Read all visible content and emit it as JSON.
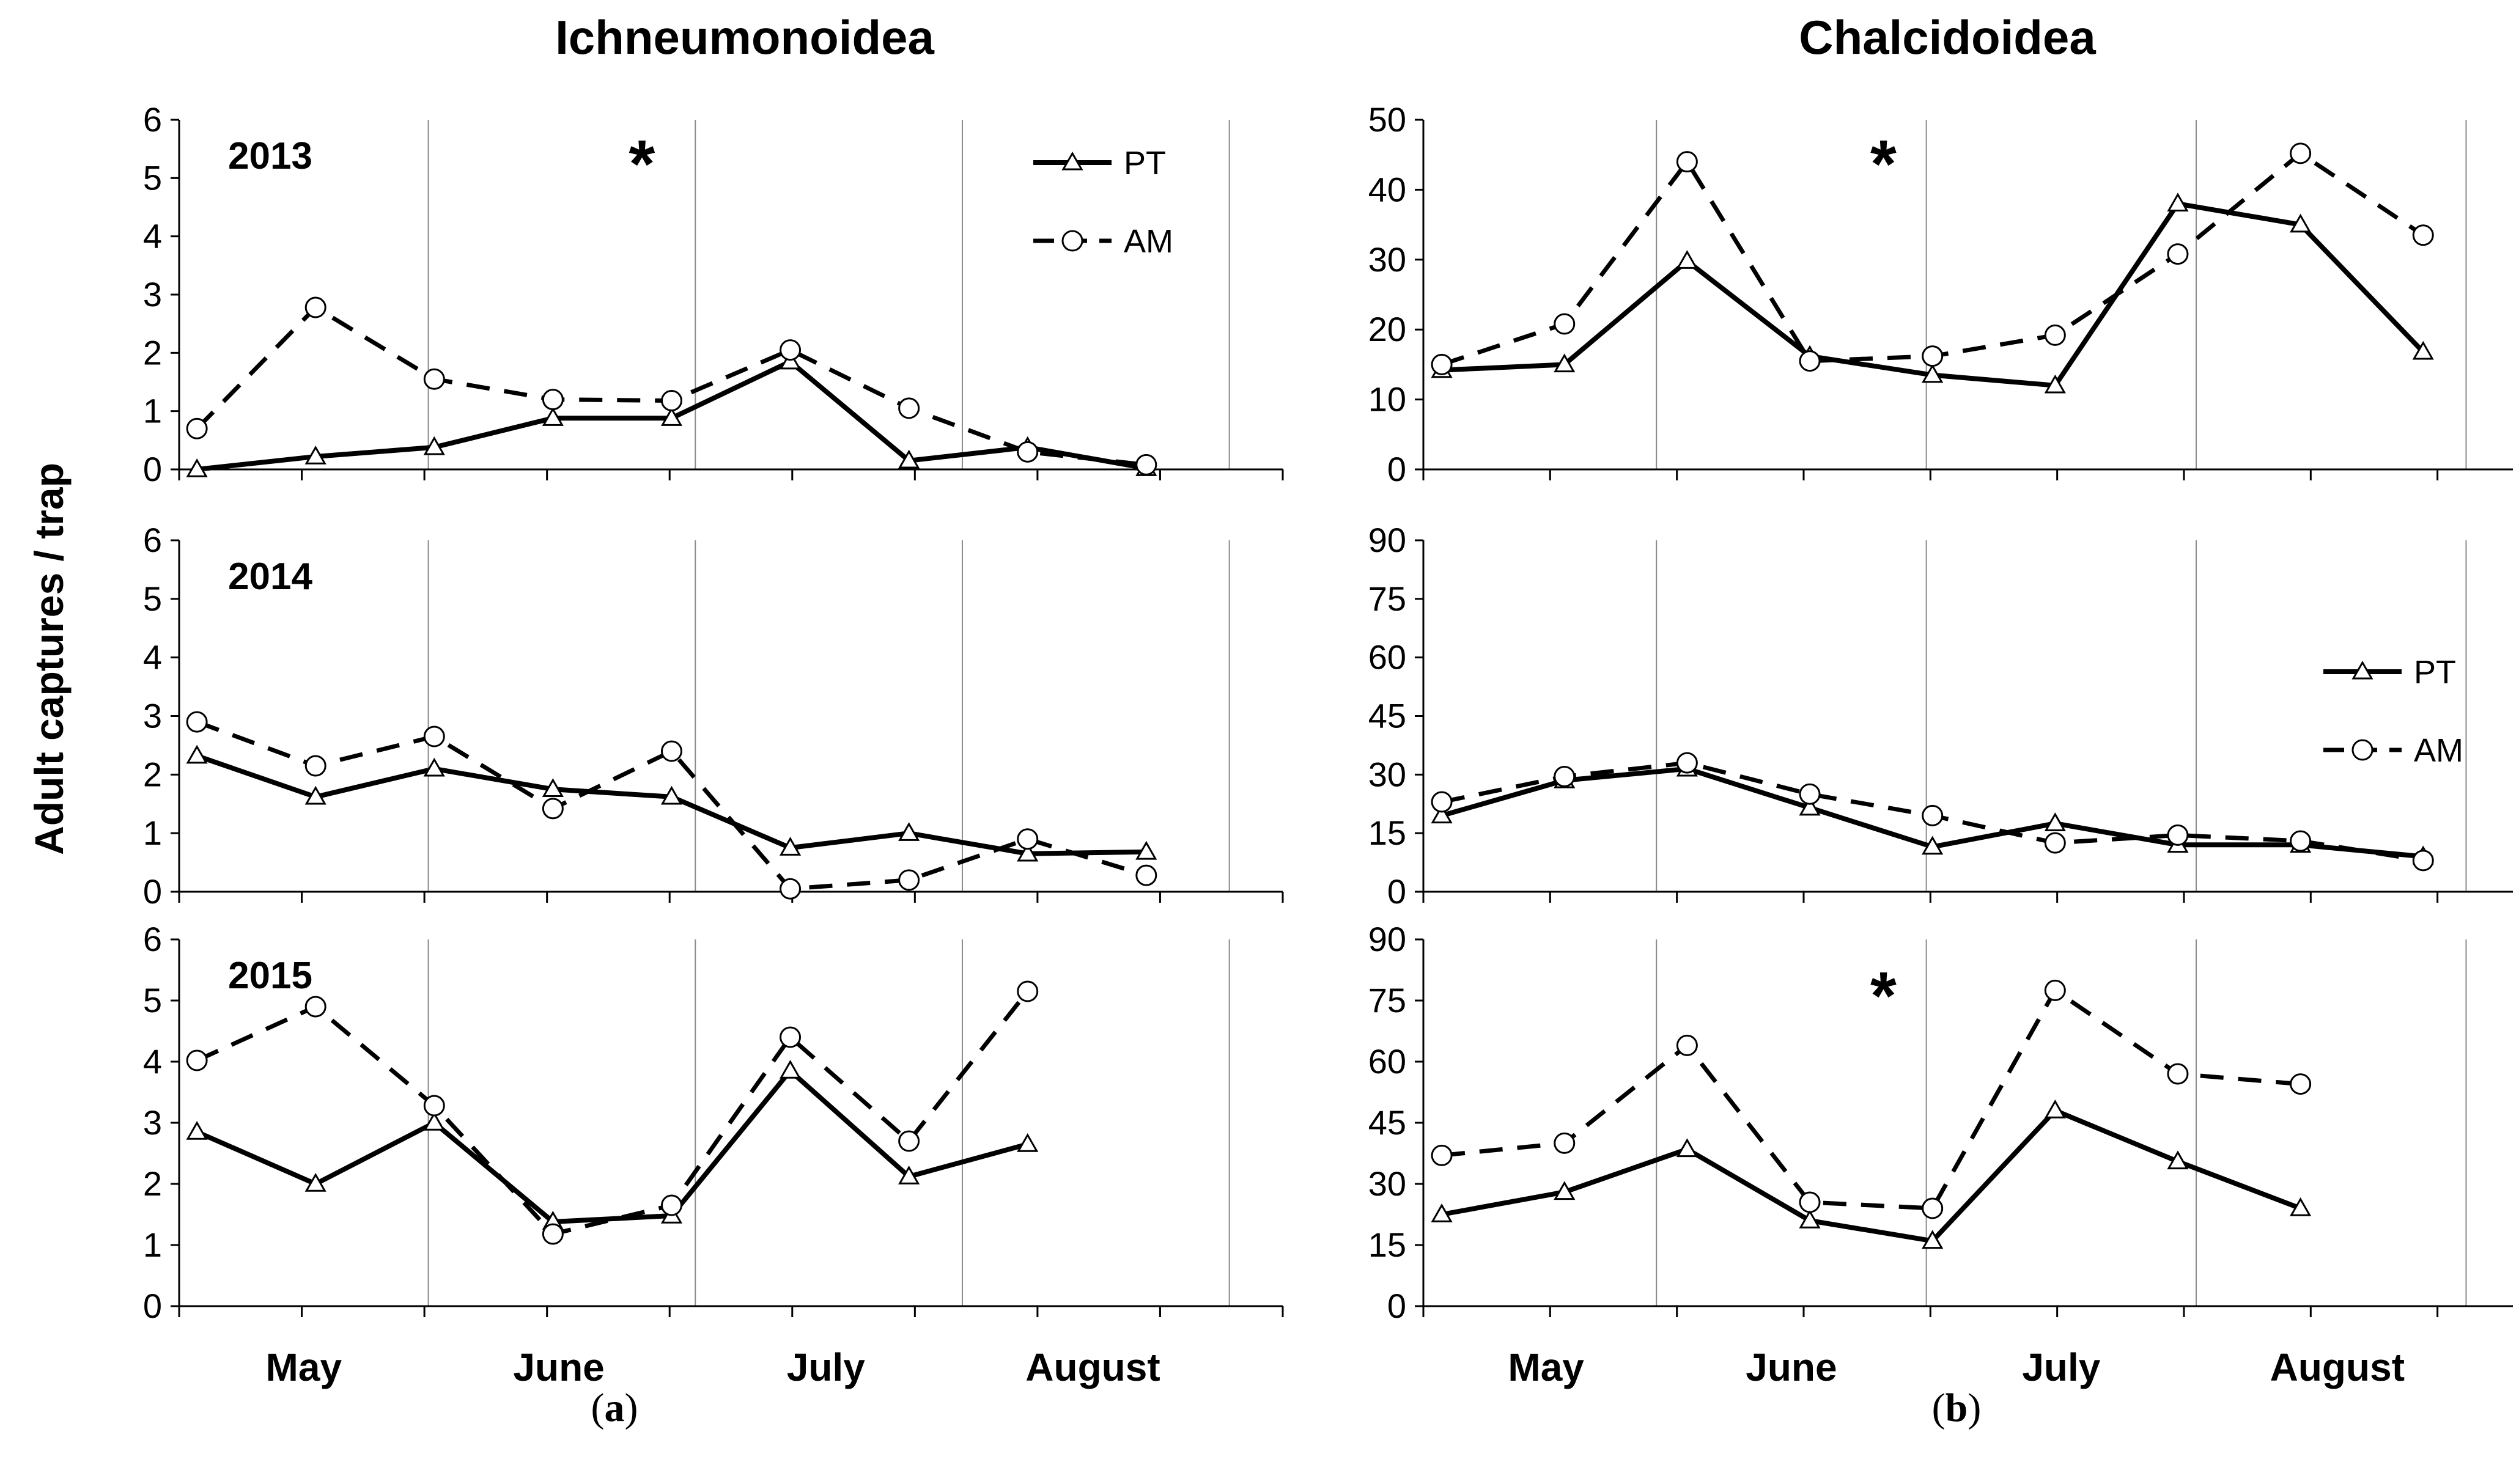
{
  "figure": {
    "ylabel": "Adult captures / trap",
    "columns": [
      {
        "title": "Ichneumonoidea",
        "sublabel": "(a)",
        "sublabel_letter": "a"
      },
      {
        "title": "Chalcidoidea",
        "sublabel": "(b)",
        "sublabel_letter": "b"
      }
    ],
    "months": [
      "May",
      "June",
      "July",
      "August"
    ],
    "legend": [
      "PT",
      "AM"
    ]
  },
  "chart_data": [
    {
      "type": "line",
      "panel": "a-2013",
      "column": 0,
      "row": 0,
      "year_label": "2013",
      "ylim": [
        0,
        6
      ],
      "yticks": [
        0,
        1,
        2,
        3,
        4,
        5,
        6
      ],
      "x": [
        1,
        2,
        3,
        4,
        5,
        6,
        7,
        8,
        9
      ],
      "legend_shown": true,
      "asterisk": true,
      "series": [
        {
          "name": "PT",
          "style": "solid-triangle",
          "values": [
            0.0,
            0.22,
            0.38,
            0.88,
            0.88,
            1.85,
            0.15,
            0.38,
            0.02
          ]
        },
        {
          "name": "AM",
          "style": "dashed-circle",
          "values": [
            0.7,
            2.78,
            1.55,
            1.2,
            1.18,
            2.05,
            1.05,
            0.3,
            0.08
          ]
        }
      ]
    },
    {
      "type": "line",
      "panel": "a-2014",
      "column": 0,
      "row": 1,
      "year_label": "2014",
      "ylim": [
        0,
        6
      ],
      "yticks": [
        0,
        1,
        2,
        3,
        4,
        5,
        6
      ],
      "x": [
        1,
        2,
        3,
        4,
        5,
        6,
        7,
        8,
        9
      ],
      "legend_shown": false,
      "asterisk": false,
      "series": [
        {
          "name": "PT",
          "style": "solid-triangle",
          "values": [
            2.32,
            1.62,
            2.1,
            1.75,
            1.62,
            0.75,
            1.0,
            0.65,
            0.68
          ]
        },
        {
          "name": "AM",
          "style": "dashed-circle",
          "values": [
            2.9,
            2.15,
            2.65,
            1.42,
            2.4,
            0.05,
            0.2,
            0.9,
            0.28
          ]
        }
      ]
    },
    {
      "type": "line",
      "panel": "a-2015",
      "column": 0,
      "row": 2,
      "year_label": "2015",
      "ylim": [
        0,
        6
      ],
      "yticks": [
        0,
        1,
        2,
        3,
        4,
        5,
        6
      ],
      "x": [
        1,
        2,
        3,
        4,
        5,
        6,
        7,
        8
      ],
      "legend_shown": false,
      "asterisk": false,
      "series": [
        {
          "name": "PT",
          "style": "solid-triangle",
          "values": [
            2.85,
            2.0,
            3.0,
            1.38,
            1.48,
            3.85,
            2.12,
            2.65
          ]
        },
        {
          "name": "AM",
          "style": "dashed-circle",
          "values": [
            4.02,
            4.9,
            3.28,
            1.18,
            1.65,
            4.4,
            2.7,
            5.15
          ]
        }
      ]
    },
    {
      "type": "line",
      "panel": "b-2013",
      "column": 1,
      "row": 0,
      "year_label": "",
      "ylim": [
        0,
        50
      ],
      "yticks": [
        0,
        10,
        20,
        30,
        40,
        50
      ],
      "x": [
        1,
        2,
        3,
        4,
        5,
        6,
        7,
        8,
        9
      ],
      "legend_shown": false,
      "asterisk": true,
      "series": [
        {
          "name": "PT",
          "style": "solid-triangle",
          "values": [
            14.2,
            15.0,
            29.8,
            16.2,
            13.5,
            12.0,
            38.0,
            35.0,
            16.8
          ]
        },
        {
          "name": "AM",
          "style": "dashed-circle",
          "values": [
            15.0,
            20.8,
            44.0,
            15.5,
            16.2,
            19.2,
            30.8,
            45.2,
            33.5
          ]
        }
      ]
    },
    {
      "type": "line",
      "panel": "b-2014",
      "column": 1,
      "row": 1,
      "year_label": "",
      "ylim": [
        0,
        90
      ],
      "yticks": [
        0,
        15,
        30,
        45,
        60,
        75,
        90
      ],
      "x": [
        1,
        2,
        3,
        4,
        5,
        6,
        7,
        8,
        9
      ],
      "legend_shown": true,
      "asterisk": false,
      "series": [
        {
          "name": "PT",
          "style": "solid-triangle",
          "values": [
            19.5,
            28.5,
            31.5,
            21.5,
            11.5,
            17.5,
            12.0,
            12.0,
            9.0
          ]
        },
        {
          "name": "AM",
          "style": "dashed-circle",
          "values": [
            23.0,
            29.5,
            33.0,
            25.0,
            19.5,
            12.5,
            14.5,
            13.0,
            8.0
          ]
        }
      ]
    },
    {
      "type": "line",
      "panel": "b-2015",
      "column": 1,
      "row": 2,
      "year_label": "",
      "ylim": [
        0,
        90
      ],
      "yticks": [
        0,
        15,
        30,
        45,
        60,
        75,
        90
      ],
      "x": [
        1,
        2,
        3,
        4,
        5,
        6,
        7,
        8
      ],
      "legend_shown": false,
      "asterisk": true,
      "series": [
        {
          "name": "PT",
          "style": "solid-triangle",
          "values": [
            22.5,
            28.0,
            38.5,
            21.0,
            16.0,
            48.0,
            35.5,
            24.0
          ]
        },
        {
          "name": "AM",
          "style": "dashed-circle",
          "values": [
            37.0,
            40.0,
            64.0,
            25.5,
            24.0,
            77.5,
            57.0,
            54.5
          ]
        }
      ]
    }
  ]
}
